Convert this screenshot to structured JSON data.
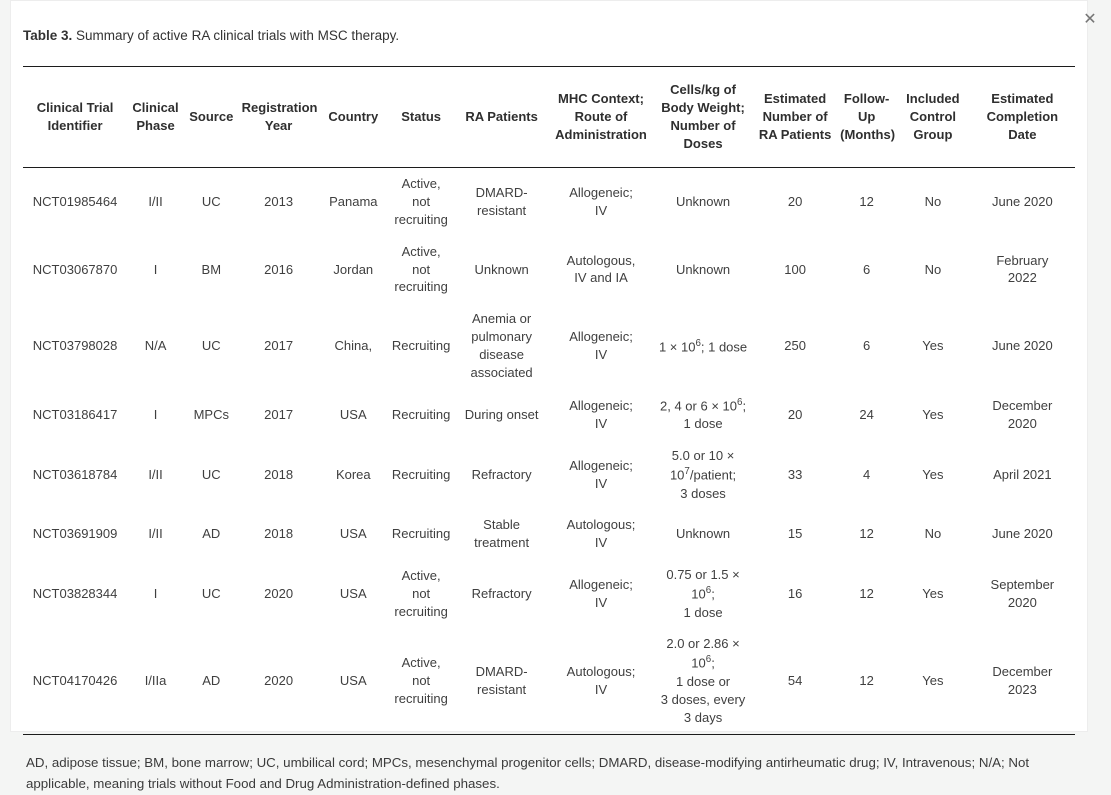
{
  "page": {
    "close_icon": "✕"
  },
  "caption": {
    "label": "Table 3.",
    "text": " Summary of active RA clinical trials with MSC therapy."
  },
  "table": {
    "columns": [
      "Clinical Trial\nIdentifier",
      "Clinical\nPhase",
      "Source",
      "Registration\nYear",
      "Country",
      "Status",
      "RA Patients",
      "MHC Context;\nRoute of\nAdministration",
      "Cells/kg of\nBody Weight;\nNumber of\nDoses",
      "Estimated\nNumber of\nRA Patients",
      "Follow-\nUp\n(Months)",
      "Included\nControl\nGroup",
      "Estimated\nCompletion\nDate"
    ],
    "rows": [
      [
        "NCT01985464",
        "I/II",
        "UC",
        "2013",
        "Panama",
        "Active, not\nrecruiting",
        "DMARD-\nresistant",
        "Allogeneic;\nIV",
        "Unknown",
        "20",
        "12",
        "No",
        "June 2020"
      ],
      [
        "NCT03067870",
        "I",
        "BM",
        "2016",
        "Jordan",
        "Active, not\nrecruiting",
        "Unknown",
        "Autologous,\nIV and IA",
        "Unknown",
        "100",
        "6",
        "No",
        "February\n2022"
      ],
      [
        "NCT03798028",
        "N/A",
        "UC",
        "2017",
        "China,",
        "Recruiting",
        "Anemia or\npulmonary\ndisease\nassociated",
        "Allogeneic;\nIV",
        "1 × 10^6; 1 dose",
        "250",
        "6",
        "Yes",
        "June 2020"
      ],
      [
        "NCT03186417",
        "I",
        "MPCs",
        "2017",
        "USA",
        "Recruiting",
        "During onset",
        "Allogeneic;\nIV",
        "2, 4 or 6 × 10^6;\n1 dose",
        "20",
        "24",
        "Yes",
        "December\n2020"
      ],
      [
        "NCT03618784",
        "I/II",
        "UC",
        "2018",
        "Korea",
        "Recruiting",
        "Refractory",
        "Allogeneic;\nIV",
        "5.0 or 10 ×\n10^7/patient;\n3 doses",
        "33",
        "4",
        "Yes",
        "April 2021"
      ],
      [
        "NCT03691909",
        "I/II",
        "AD",
        "2018",
        "USA",
        "Recruiting",
        "Stable\ntreatment",
        "Autologous;\nIV",
        "Unknown",
        "15",
        "12",
        "No",
        "June 2020"
      ],
      [
        "NCT03828344",
        "I",
        "UC",
        "2020",
        "USA",
        "Active, not\nrecruiting",
        "Refractory",
        "Allogeneic;\nIV",
        "0.75 or 1.5 ×\n10^6;\n1 dose",
        "16",
        "12",
        "Yes",
        "September\n2020"
      ],
      [
        "NCT04170426",
        "I/IIa",
        "AD",
        "2020",
        "USA",
        "Active, not\nrecruiting",
        "DMARD-\nresistant",
        "Autologous;\nIV",
        "2.0 or 2.86 ×\n10^6;\n1 dose or\n3 doses, every\n3 days",
        "54",
        "12",
        "Yes",
        "December\n2023"
      ]
    ]
  },
  "footnote": "AD, adipose tissue; BM, bone marrow; UC, umbilical cord; MPCs, mesenchymal progenitor cells; DMARD, disease-modifying antirheumatic drug; IV, Intravenous; N/A; Not applicable, meaning trials without Food and Drug Administration-defined phases."
}
